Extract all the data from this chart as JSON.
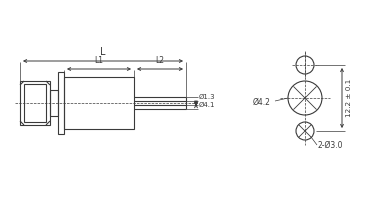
{
  "bg_color": "#ffffff",
  "line_color": "#3a3a3a",
  "thin_lw": 0.8,
  "medium_lw": 1.0,
  "dash_lw": 0.6,
  "labels": {
    "L": "L",
    "L1": "L1",
    "L2": "L2",
    "d1": "Ø1.3",
    "d2": "Ø4.1",
    "d3": "Ø4.2",
    "d4": "2-Ø3.0",
    "height": "12.2 ± 0.1"
  },
  "font_size": 5.5,
  "font_size_large": 7.0
}
